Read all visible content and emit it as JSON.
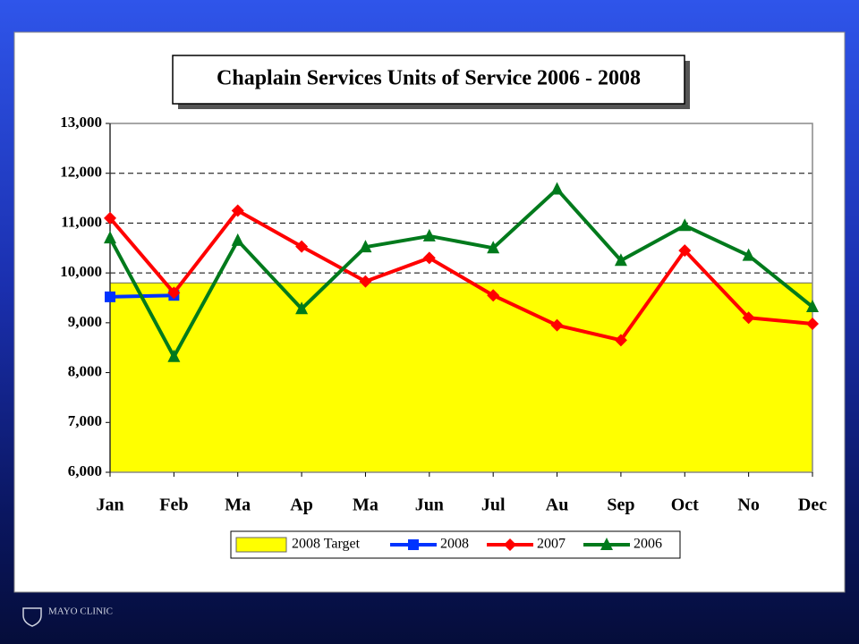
{
  "footer": "MAYO CLINIC",
  "chart_data": {
    "type": "line",
    "title": "Chaplain Services Units of Service 2006 - 2008",
    "categories": [
      "Jan",
      "Feb",
      "Ma",
      "Ap",
      "Ma",
      "Jun",
      "Jul",
      "Au",
      "Sep",
      "Oct",
      "No",
      "Dec"
    ],
    "ylim": [
      6000,
      13000
    ],
    "yticks": [
      {
        "value": 6000,
        "label": "6,000"
      },
      {
        "value": 7000,
        "label": "7,000"
      },
      {
        "value": 8000,
        "label": "8,000"
      },
      {
        "value": 9000,
        "label": "9,000"
      },
      {
        "value": 10000,
        "label": "10,000"
      },
      {
        "value": 11000,
        "label": "11,000"
      },
      {
        "value": 12000,
        "label": "12,000"
      },
      {
        "value": 13000,
        "label": "13,000"
      }
    ],
    "grid": true,
    "legend": "bottom",
    "target": {
      "name": "2008 Target",
      "value": 9800,
      "color": "#ffff00"
    },
    "series": [
      {
        "name": "2008",
        "color": "#0033ff",
        "marker": "square",
        "values": [
          9520,
          9550,
          null,
          null,
          null,
          null,
          null,
          null,
          null,
          null,
          null,
          null
        ]
      },
      {
        "name": "2007",
        "color": "#ff0000",
        "marker": "diamond",
        "values": [
          11100,
          9600,
          11250,
          10530,
          9830,
          10300,
          9550,
          8950,
          8650,
          10450,
          9100,
          8980
        ]
      },
      {
        "name": "2006",
        "color": "#007a1c",
        "marker": "triangle",
        "values": [
          10700,
          8320,
          10650,
          9280,
          10520,
          10740,
          10500,
          11680,
          10250,
          10950,
          10350,
          9320
        ]
      }
    ]
  }
}
